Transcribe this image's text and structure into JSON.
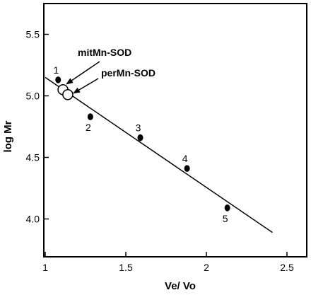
{
  "chart_data": {
    "type": "scatter",
    "title": "",
    "xlabel": "Ve/ Vo",
    "ylabel": "log Mr",
    "xlim": [
      1,
      2.5
    ],
    "ylim": [
      3.75,
      5.75
    ],
    "grid": false,
    "x_ticks": [
      {
        "value": 1,
        "label": "1"
      },
      {
        "value": 1.5,
        "label": "1.5"
      },
      {
        "value": 2,
        "label": "2"
      },
      {
        "value": 2.5,
        "label": "2.5"
      }
    ],
    "y_ticks": [
      {
        "value": 4.0,
        "label": "4.0"
      },
      {
        "value": 4.5,
        "label": "4.5"
      },
      {
        "value": 5.0,
        "label": "5.0"
      },
      {
        "value": 5.5,
        "label": "5.5"
      }
    ],
    "standards": [
      {
        "label": "1",
        "x": 1.08,
        "y": 5.13
      },
      {
        "label": "2",
        "x": 1.28,
        "y": 4.83
      },
      {
        "label": "3",
        "x": 1.59,
        "y": 4.66
      },
      {
        "label": "4",
        "x": 1.88,
        "y": 4.41
      },
      {
        "label": "5",
        "x": 2.13,
        "y": 4.09
      }
    ],
    "samples": [
      {
        "label": "mitMn-SOD",
        "x": 1.11,
        "y": 5.05
      },
      {
        "label": "perMn-SOD",
        "x": 1.14,
        "y": 5.01
      }
    ],
    "fit_line": {
      "x": [
        1.0,
        2.41
      ],
      "y": [
        5.15,
        3.89
      ]
    }
  }
}
